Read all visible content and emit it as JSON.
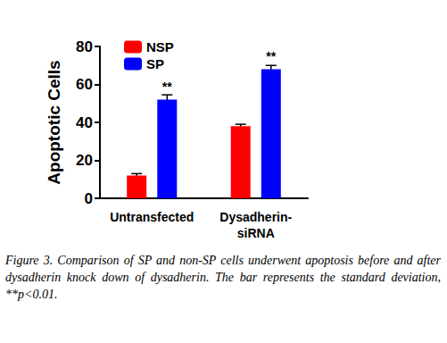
{
  "chart_data": {
    "type": "bar",
    "y_label": "Apoptotic Cells",
    "categories": [
      "Untransfected",
      "Dysadherin-\nsiRNA"
    ],
    "series": [
      {
        "name": "NSP",
        "color": "#ff0000",
        "values": [
          12,
          38
        ],
        "errors": [
          1,
          1
        ]
      },
      {
        "name": "SP",
        "color": "#0000ff",
        "values": [
          52,
          68
        ],
        "errors": [
          2.5,
          2
        ],
        "annotations": [
          "**",
          "**"
        ]
      }
    ],
    "ylim": [
      0,
      80
    ],
    "yticks": [
      0,
      20,
      40,
      60,
      80
    ],
    "grid": false,
    "legend": "top-left"
  },
  "caption": "Figure 3. Comparison of SP and non-SP cells underwent apoptosis before and after dysadherin knock down of dysadherin. The bar represents the standard deviation, **p<0.01."
}
